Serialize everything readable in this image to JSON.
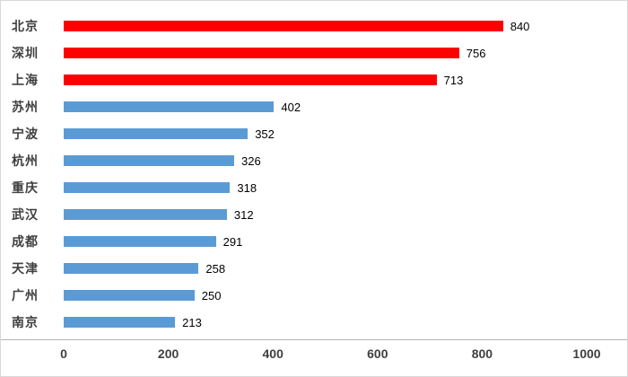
{
  "chart_data": {
    "type": "bar",
    "orientation": "horizontal",
    "title": "",
    "xlabel": "",
    "ylabel": "",
    "categories": [
      "北京",
      "深圳",
      "上海",
      "苏州",
      "宁波",
      "杭州",
      "重庆",
      "武汉",
      "成都",
      "天津",
      "广州",
      "南京"
    ],
    "values": [
      840,
      756,
      713,
      402,
      352,
      326,
      318,
      312,
      291,
      258,
      250,
      213
    ],
    "bar_colors": [
      "#ff0000",
      "#ff0000",
      "#ff0000",
      "#5b9bd5",
      "#5b9bd5",
      "#5b9bd5",
      "#5b9bd5",
      "#5b9bd5",
      "#5b9bd5",
      "#5b9bd5",
      "#5b9bd5",
      "#5b9bd5"
    ],
    "highlight_color": "#ff0000",
    "base_color": "#5b9bd5",
    "xlim": [
      0,
      1000
    ],
    "x_ticks": [
      0,
      200,
      400,
      600,
      800,
      1000
    ],
    "grid": false,
    "legend": false,
    "value_labels_shown": true
  },
  "colors": {
    "axis_line": "#b3b3b3",
    "category_text": "#3f3f3f",
    "value_text": "#000000",
    "tick_text": "#3f3f3f",
    "background": "#ffffff",
    "frame_border": "#d9d9d9"
  }
}
